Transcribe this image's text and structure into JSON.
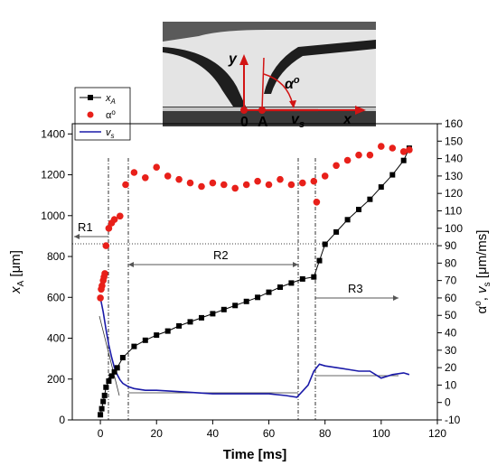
{
  "chart_data": {
    "type": "scatter",
    "xlabel": "Time [ms]",
    "ylabel_left": "x_A [μm]",
    "ylabel_right": "α°, v_s [μm/ms]",
    "xlim": [
      -10,
      120
    ],
    "ylim_left": [
      0,
      1450
    ],
    "ylim_right": [
      -10,
      160
    ],
    "x_ticks": [
      0,
      20,
      40,
      60,
      80,
      100,
      120
    ],
    "y_left_ticks": [
      0,
      200,
      400,
      600,
      800,
      1000,
      1200,
      1400
    ],
    "y_right_ticks": [
      -10,
      0,
      10,
      20,
      30,
      40,
      50,
      60,
      70,
      80,
      90,
      100,
      110,
      120,
      130,
      140,
      150,
      160
    ],
    "grid": false,
    "legend_position": "top-left",
    "series": [
      {
        "name": "x_A",
        "axis": "left",
        "style": "line-with-square-markers",
        "color": "#000000",
        "x": [
          0,
          0.5,
          1,
          1.5,
          2,
          3,
          4,
          5,
          6,
          8,
          12,
          16,
          20,
          24,
          28,
          32,
          36,
          40,
          44,
          48,
          52,
          56,
          60,
          64,
          68,
          72,
          76,
          78,
          80,
          84,
          88,
          92,
          96,
          100,
          104,
          108,
          110
        ],
        "y": [
          25,
          55,
          90,
          120,
          160,
          190,
          215,
          235,
          255,
          305,
          360,
          390,
          415,
          435,
          460,
          480,
          500,
          520,
          540,
          560,
          580,
          600,
          625,
          650,
          670,
          690,
          700,
          780,
          860,
          920,
          980,
          1030,
          1080,
          1140,
          1200,
          1270,
          1330
        ]
      },
      {
        "name": "α°",
        "axis": "right",
        "style": "dots",
        "color": "#e8201a",
        "x": [
          0,
          0.3,
          0.6,
          1,
          1.3,
          1.6,
          2,
          3,
          4,
          5,
          7,
          9,
          12,
          16,
          20,
          24,
          28,
          32,
          36,
          40,
          44,
          48,
          52,
          56,
          60,
          64,
          68,
          72,
          76,
          77,
          80,
          84,
          88,
          92,
          96,
          100,
          104,
          108,
          110
        ],
        "y": [
          60,
          65,
          67,
          70,
          72,
          74,
          90,
          100,
          103,
          105,
          107,
          125,
          132,
          129,
          135,
          130,
          128,
          126,
          124,
          126,
          125,
          123,
          125,
          127,
          125,
          128,
          125,
          126,
          127,
          115,
          130,
          136,
          139,
          142,
          142,
          147,
          146,
          144,
          145
        ]
      },
      {
        "name": "v_s",
        "axis": "right",
        "style": "line",
        "color": "#1a1aa8",
        "x": [
          0,
          1,
          2,
          3,
          4,
          5,
          6,
          7,
          8,
          10,
          12,
          16,
          20,
          30,
          40,
          50,
          60,
          66,
          70,
          74,
          76,
          78,
          80,
          84,
          88,
          92,
          96,
          100,
          104,
          108,
          110
        ],
        "y": [
          60,
          52,
          42,
          33,
          26,
          20,
          16,
          13,
          11,
          9,
          8,
          7,
          7,
          6,
          5,
          5,
          5,
          4,
          3,
          10,
          18,
          22,
          21,
          20,
          19,
          18,
          18,
          14,
          16,
          17,
          16
        ]
      }
    ],
    "regions": [
      {
        "label": "R1"
      },
      {
        "label": "R2"
      },
      {
        "label": "R3"
      }
    ],
    "legend": [
      {
        "key": "x_A",
        "label": "x",
        "sub": "A"
      },
      {
        "key": "α°",
        "label": "α",
        "sup": "o"
      },
      {
        "key": "v_s",
        "label": "v",
        "sub": "s"
      }
    ]
  },
  "inset": {
    "axis_y": "y",
    "axis_x": "x",
    "angle_label": "α",
    "angle_sup": "o",
    "origin_label": "0",
    "point_label": "A",
    "velocity_label": "v",
    "velocity_sub": "s"
  }
}
